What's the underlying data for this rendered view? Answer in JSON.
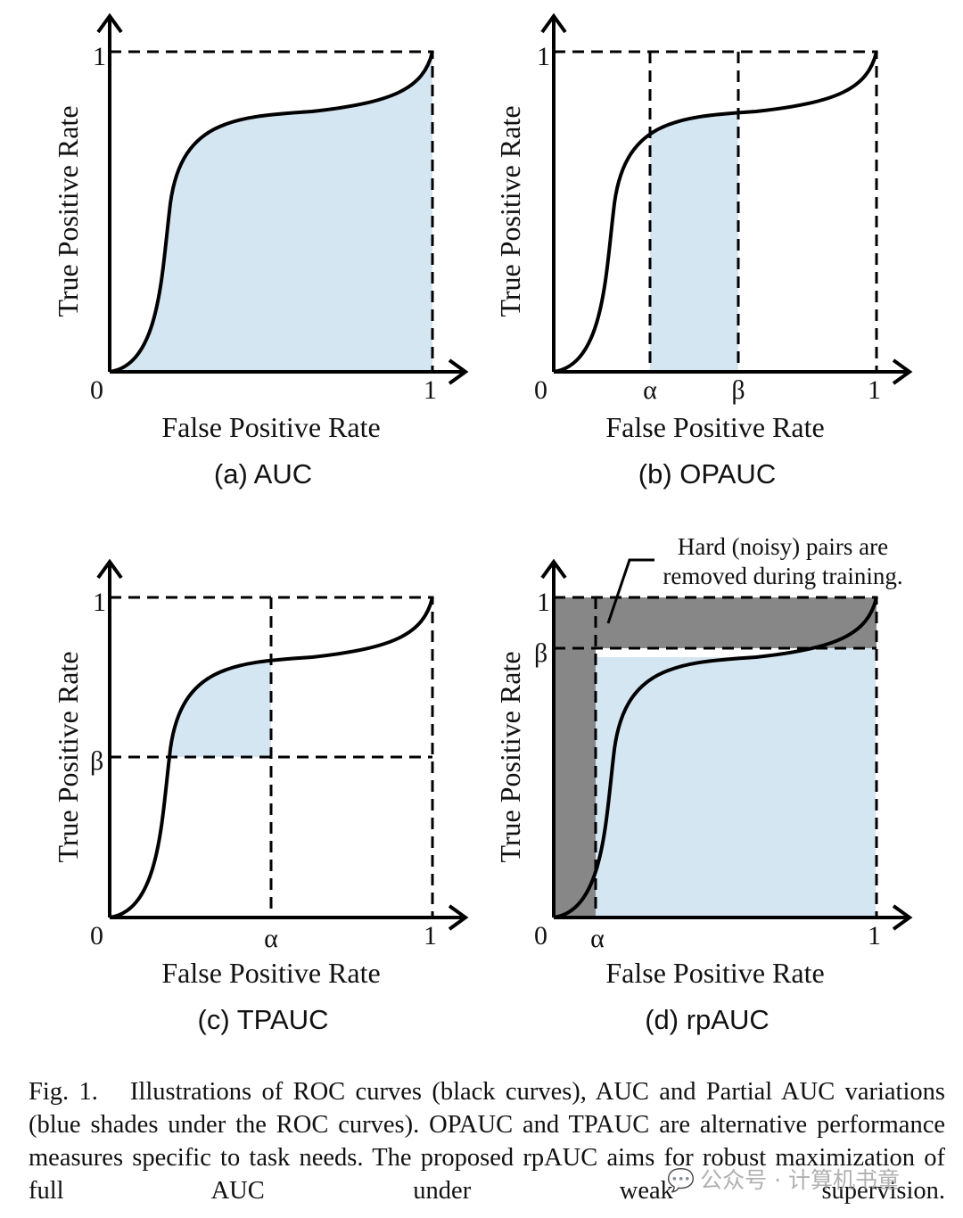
{
  "figure": {
    "axis_x_title": "False Positive Rate",
    "axis_y_title": "True Positive Rate",
    "tick_zero": "0",
    "tick_one": "1",
    "tick_alpha": "α",
    "tick_beta": "β",
    "panels": [
      {
        "id": "a",
        "label": "(a) AUC",
        "shaded_region": "full area under ROC curve"
      },
      {
        "id": "b",
        "label": "(b) OPAUC",
        "shaded_region": "FPR between α and β"
      },
      {
        "id": "c",
        "label": "(c) TPAUC",
        "shaded_region": "FPR ≤ α and TPR ≥ β"
      },
      {
        "id": "d",
        "label": "(d) rpAUC",
        "shaded_region": "FPR ≥ α and TPR ≤ β",
        "annotation_line1": "Hard (noisy) pairs are",
        "annotation_line2": "removed during training."
      }
    ]
  },
  "caption": {
    "label": "Fig. 1.",
    "text": "Illustrations of ROC curves (black curves), AUC and Partial AUC variations (blue shades under the ROC curves). OPAUC and TPAUC are alternative performance measures specific to task needs. The proposed rpAUC aims for robust maximization of full AUC under weak supervision."
  },
  "watermark": {
    "icon": "wechat-icon",
    "text": "公众号 · 计算机书童"
  },
  "colors": {
    "shade_blue": "#d5e6f3",
    "band_gray": "#878787",
    "line": "#000000"
  }
}
